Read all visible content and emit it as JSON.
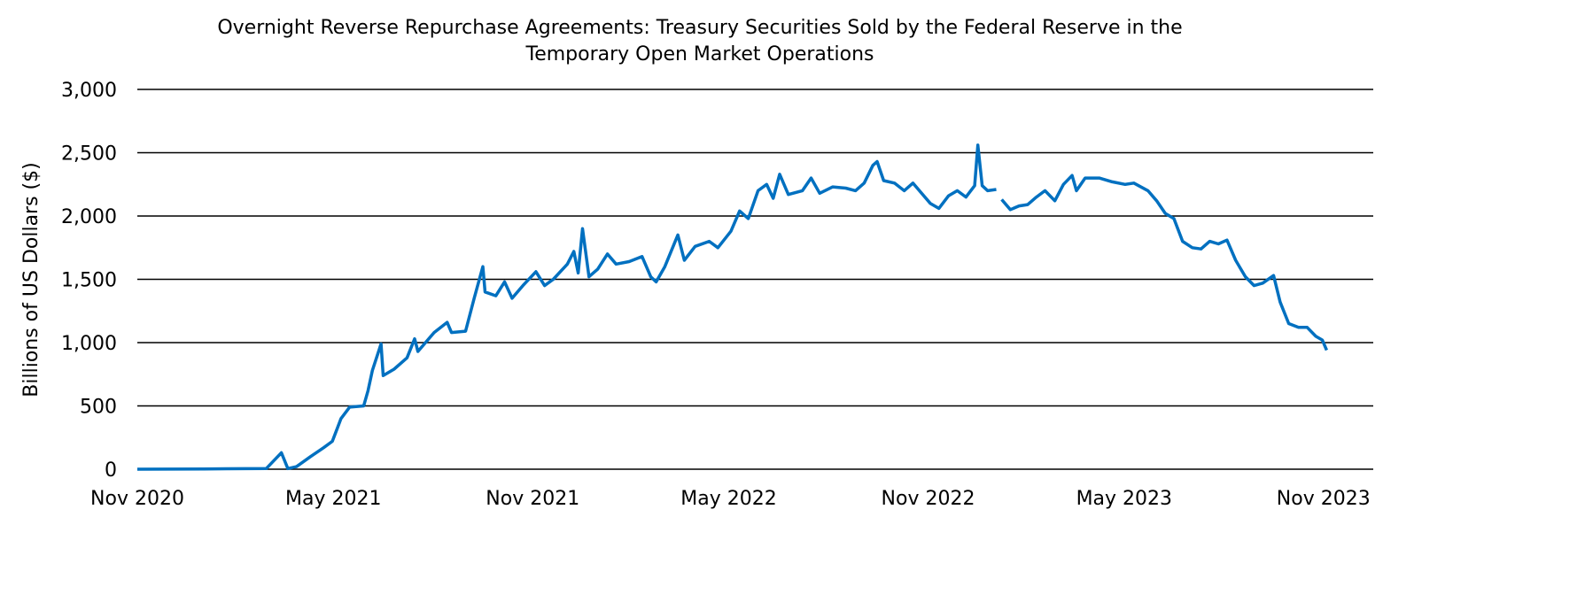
{
  "chart_data": {
    "type": "line",
    "title_lines": [
      "Overnight Reverse Repurchase Agreements: Treasury Securities Sold by the Federal Reserve in  the",
      "Temporary Open Market Operations"
    ],
    "xlabel": "",
    "ylabel": "Billions  of US Dollars ($)",
    "xlim": [
      "2020-11-01",
      "2023-12-17"
    ],
    "ylim": [
      0,
      3000
    ],
    "yticks": [
      0,
      500,
      1000,
      1500,
      2000,
      2500,
      3000
    ],
    "ytick_labels": [
      "0",
      "500",
      "1,000",
      "1,500",
      "2,000",
      "2,500",
      "3,000"
    ],
    "xticks": [
      "2020-11-01",
      "2021-05-01",
      "2021-11-01",
      "2022-05-01",
      "2022-11-01",
      "2023-05-01",
      "2023-11-01"
    ],
    "xtick_labels": [
      "Nov 2020",
      "May 2021",
      "Nov 2021",
      "May 2022",
      "Nov 2022",
      "May 2023",
      "Nov 2023"
    ],
    "grid": "horizontal",
    "line_color": "#0070C0",
    "series": [
      {
        "points": [
          [
            "2020-11-01",
            0
          ],
          [
            "2021-01-01",
            2
          ],
          [
            "2021-02-28",
            5
          ],
          [
            "2021-03-14",
            130
          ],
          [
            "2021-03-20",
            5
          ],
          [
            "2021-03-28",
            20
          ],
          [
            "2021-04-10",
            100
          ],
          [
            "2021-04-22",
            170
          ],
          [
            "2021-04-30",
            220
          ],
          [
            "2021-05-08",
            400
          ],
          [
            "2021-05-16",
            490
          ],
          [
            "2021-05-29",
            500
          ],
          [
            "2021-06-02",
            620
          ],
          [
            "2021-06-06",
            780
          ],
          [
            "2021-06-14",
            990
          ],
          [
            "2021-06-16",
            740
          ],
          [
            "2021-06-26",
            790
          ],
          [
            "2021-07-08",
            880
          ],
          [
            "2021-07-15",
            1030
          ],
          [
            "2021-07-18",
            930
          ],
          [
            "2021-08-02",
            1080
          ],
          [
            "2021-08-14",
            1160
          ],
          [
            "2021-08-18",
            1080
          ],
          [
            "2021-08-31",
            1090
          ],
          [
            "2021-09-08",
            1350
          ],
          [
            "2021-09-16",
            1600
          ],
          [
            "2021-09-18",
            1400
          ],
          [
            "2021-09-28",
            1370
          ],
          [
            "2021-10-06",
            1480
          ],
          [
            "2021-10-13",
            1350
          ],
          [
            "2021-10-23",
            1450
          ],
          [
            "2021-11-04",
            1560
          ],
          [
            "2021-11-12",
            1450
          ],
          [
            "2021-11-20",
            1500
          ],
          [
            "2021-12-03",
            1620
          ],
          [
            "2021-12-09",
            1720
          ],
          [
            "2021-12-13",
            1550
          ],
          [
            "2021-12-17",
            1900
          ],
          [
            "2021-12-23",
            1520
          ],
          [
            "2021-12-31",
            1580
          ],
          [
            "2022-01-09",
            1700
          ],
          [
            "2022-01-17",
            1620
          ],
          [
            "2022-01-29",
            1640
          ],
          [
            "2022-02-10",
            1680
          ],
          [
            "2022-02-18",
            1520
          ],
          [
            "2022-02-23",
            1480
          ],
          [
            "2022-03-03",
            1600
          ],
          [
            "2022-03-15",
            1850
          ],
          [
            "2022-03-21",
            1650
          ],
          [
            "2022-03-31",
            1760
          ],
          [
            "2022-04-13",
            1800
          ],
          [
            "2022-04-21",
            1750
          ],
          [
            "2022-05-03",
            1880
          ],
          [
            "2022-05-11",
            2040
          ],
          [
            "2022-05-19",
            1980
          ],
          [
            "2022-05-28",
            2200
          ],
          [
            "2022-06-05",
            2250
          ],
          [
            "2022-06-11",
            2140
          ],
          [
            "2022-06-17",
            2330
          ],
          [
            "2022-06-25",
            2170
          ],
          [
            "2022-07-08",
            2200
          ],
          [
            "2022-07-16",
            2300
          ],
          [
            "2022-07-24",
            2180
          ],
          [
            "2022-08-05",
            2230
          ],
          [
            "2022-08-17",
            2220
          ],
          [
            "2022-08-26",
            2200
          ],
          [
            "2022-09-03",
            2260
          ],
          [
            "2022-09-11",
            2400
          ],
          [
            "2022-09-15",
            2430
          ],
          [
            "2022-09-21",
            2280
          ],
          [
            "2022-10-01",
            2260
          ],
          [
            "2022-10-10",
            2200
          ],
          [
            "2022-10-18",
            2260
          ],
          [
            "2022-10-26",
            2180
          ],
          [
            "2022-11-03",
            2100
          ],
          [
            "2022-11-11",
            2060
          ],
          [
            "2022-11-20",
            2160
          ],
          [
            "2022-11-28",
            2200
          ],
          [
            "2022-12-06",
            2150
          ],
          [
            "2022-12-14",
            2240
          ],
          [
            "2022-12-17",
            2560
          ],
          [
            "2022-12-21",
            2240
          ],
          [
            "2022-12-26",
            2200
          ],
          [
            "2023-01-03",
            2210
          ],
          [
            "2023-01-05",
            null
          ],
          [
            "2023-01-08",
            2130
          ],
          [
            "2023-01-16",
            2050
          ],
          [
            "2023-01-24",
            2080
          ],
          [
            "2023-02-01",
            2090
          ],
          [
            "2023-02-09",
            2150
          ],
          [
            "2023-02-17",
            2200
          ],
          [
            "2023-02-26",
            2120
          ],
          [
            "2023-03-06",
            2250
          ],
          [
            "2023-03-14",
            2320
          ],
          [
            "2023-03-18",
            2200
          ],
          [
            "2023-03-26",
            2300
          ],
          [
            "2023-04-08",
            2300
          ],
          [
            "2023-04-20",
            2270
          ],
          [
            "2023-05-02",
            2250
          ],
          [
            "2023-05-10",
            2260
          ],
          [
            "2023-05-23",
            2200
          ],
          [
            "2023-05-31",
            2120
          ],
          [
            "2023-06-08",
            2020
          ],
          [
            "2023-06-16",
            1980
          ],
          [
            "2023-06-24",
            1800
          ],
          [
            "2023-07-03",
            1750
          ],
          [
            "2023-07-11",
            1740
          ],
          [
            "2023-07-19",
            1800
          ],
          [
            "2023-07-27",
            1780
          ],
          [
            "2023-08-04",
            1810
          ],
          [
            "2023-08-12",
            1650
          ],
          [
            "2023-08-21",
            1520
          ],
          [
            "2023-08-29",
            1450
          ],
          [
            "2023-09-06",
            1470
          ],
          [
            "2023-09-16",
            1530
          ],
          [
            "2023-09-22",
            1320
          ],
          [
            "2023-09-30",
            1150
          ],
          [
            "2023-10-09",
            1120
          ],
          [
            "2023-10-17",
            1120
          ],
          [
            "2023-10-25",
            1050
          ],
          [
            "2023-10-31",
            1020
          ],
          [
            "2023-11-04",
            940
          ]
        ]
      }
    ]
  }
}
